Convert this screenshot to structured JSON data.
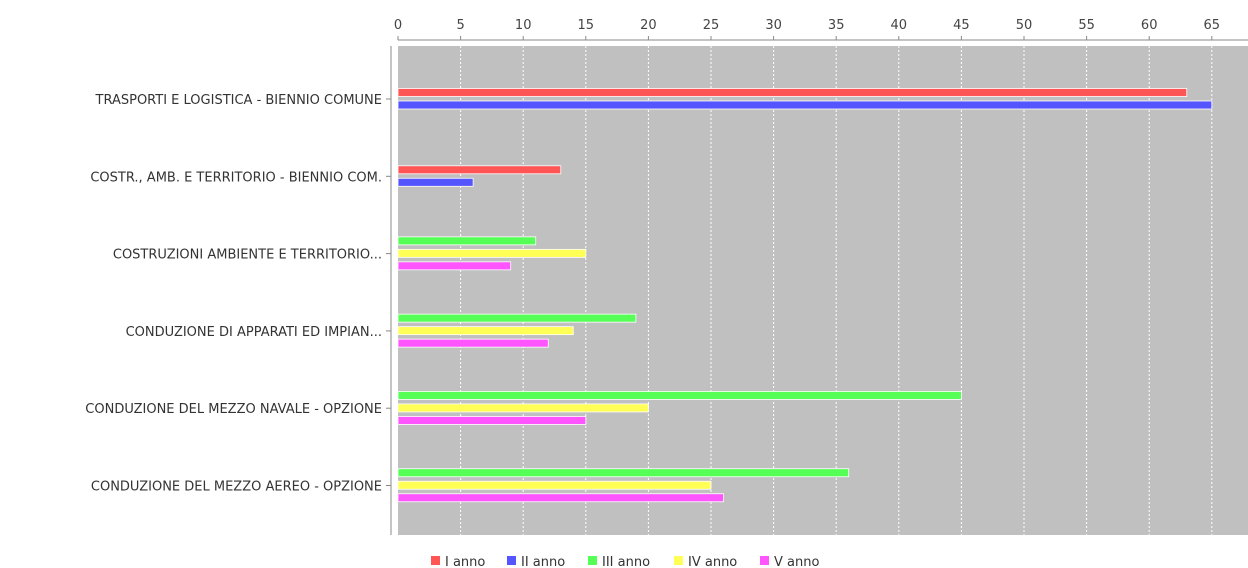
{
  "chart_data": {
    "type": "bar",
    "orientation": "horizontal",
    "categories": [
      "TRASPORTI E LOGISTICA - BIENNIO COMUNE",
      "COSTR., AMB. E TERRITORIO - BIENNIO COM.",
      "COSTRUZIONI AMBIENTE E TERRITORIO...",
      "CONDUZIONE DI APPARATI ED IMPIAN...",
      "CONDUZIONE DEL MEZZO NAVALE - OPZIONE",
      "CONDUZIONE DEL MEZZO AEREO - OPZIONE"
    ],
    "series": [
      {
        "name": "I anno",
        "color": "#ff5555",
        "values": [
          63,
          13,
          null,
          null,
          null,
          null
        ]
      },
      {
        "name": "II anno",
        "color": "#5555ff",
        "values": [
          65,
          6,
          null,
          null,
          null,
          null
        ]
      },
      {
        "name": "III anno",
        "color": "#55ff55",
        "values": [
          null,
          null,
          11,
          19,
          45,
          36
        ]
      },
      {
        "name": "IV anno",
        "color": "#ffff55",
        "values": [
          null,
          null,
          15,
          14,
          20,
          25
        ]
      },
      {
        "name": "V anno",
        "color": "#ff55ff",
        "values": [
          null,
          null,
          9,
          12,
          15,
          26
        ]
      }
    ],
    "x_ticks": [
      0,
      5,
      10,
      15,
      20,
      25,
      30,
      35,
      40,
      45,
      50,
      55,
      60,
      65
    ],
    "xlim": [
      0,
      68
    ],
    "x_axis_position": "top",
    "grid": true,
    "legend_position": "bottom",
    "plot_background": "#c0c0c0",
    "title": "",
    "xlabel": "",
    "ylabel": ""
  }
}
